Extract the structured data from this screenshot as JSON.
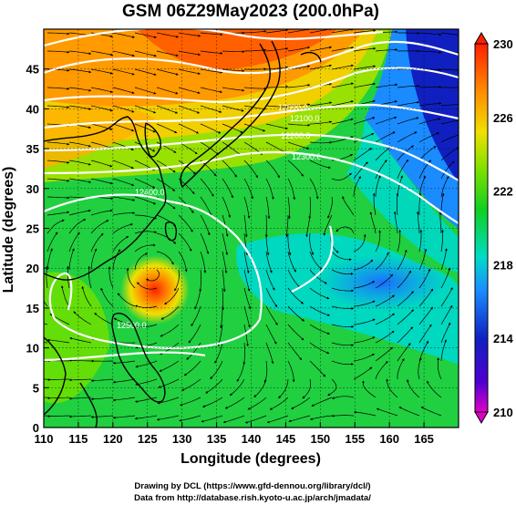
{
  "title": "GSM 06Z29May2023 (200.0hPa)",
  "x_axis": {
    "label": "Longitude (degrees)",
    "range": [
      110,
      170
    ],
    "ticks": [
      "110",
      "115",
      "120",
      "125",
      "130",
      "135",
      "140",
      "145",
      "150",
      "155",
      "160",
      "165"
    ]
  },
  "y_axis": {
    "label": "Latitude (degrees)",
    "range": [
      0,
      50
    ],
    "ticks": [
      "0",
      "5",
      "10",
      "15",
      "20",
      "25",
      "30",
      "35",
      "40",
      "45"
    ]
  },
  "colorbar": {
    "range": [
      210,
      230
    ],
    "labels": [
      "230",
      "226",
      "222",
      "218",
      "214",
      "210"
    ],
    "colors": [
      "#e000c8",
      "#1010c0",
      "#1a8cff",
      "#00dcc8",
      "#10d020",
      "#80e000",
      "#f0e000",
      "#ff8c00",
      "#ff2000"
    ]
  },
  "contour_labels": [
    "12000.0",
    "12100.0",
    "12200.0",
    "12300.0",
    "12400.0",
    "12500.0"
  ],
  "cyclone_center": {
    "lon": 126,
    "lat": 19.5
  },
  "credits": {
    "line1": "Drawing by DCL (https://www.gfd-dennou.org/library/dcl/)",
    "line2": "Data from http://database.rish.kyoto-u.ac.jp/arch/jmadata/"
  }
}
